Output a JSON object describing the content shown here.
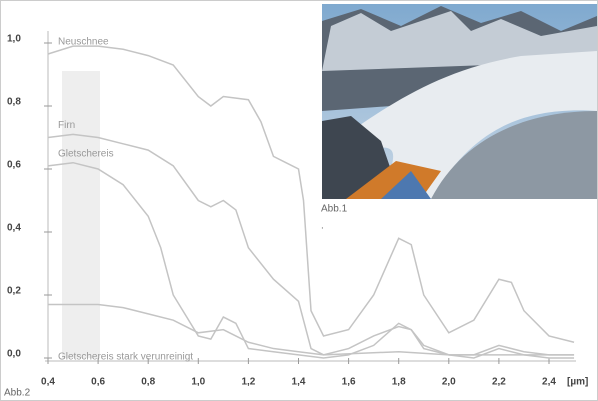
{
  "chart_data": {
    "type": "line",
    "x_label": "[µm]",
    "xlim": [
      0.4,
      2.5
    ],
    "ylim": [
      0,
      1.04
    ],
    "xticks": [
      {
        "value": 0.4,
        "label": "0,4"
      },
      {
        "value": 0.6,
        "label": "0,6"
      },
      {
        "value": 0.8,
        "label": "0,8"
      },
      {
        "value": 1.0,
        "label": "1,0"
      },
      {
        "value": 1.2,
        "label": "1,2"
      },
      {
        "value": 1.4,
        "label": "1,4"
      },
      {
        "value": 1.6,
        "label": "1,6"
      },
      {
        "value": 1.8,
        "label": "1,8"
      },
      {
        "value": 2.0,
        "label": "2,0"
      },
      {
        "value": 2.2,
        "label": "2,2"
      },
      {
        "value": 2.4,
        "label": "2,4"
      }
    ],
    "yticks": [
      {
        "value": 0,
        "label": "0,0"
      },
      {
        "value": 0.2,
        "label": "0,2"
      },
      {
        "value": 0.4,
        "label": "0,4"
      },
      {
        "value": 0.6,
        "label": "0,6"
      },
      {
        "value": 0.8,
        "label": "0,8"
      },
      {
        "value": 1.0,
        "label": "1,0"
      }
    ],
    "series": [
      {
        "name": "Neuschnee",
        "color": "#c4c4c4",
        "x": [
          0.4,
          0.5,
          0.6,
          0.7,
          0.8,
          0.9,
          1.0,
          1.05,
          1.1,
          1.2,
          1.25,
          1.3,
          1.35,
          1.4,
          1.42,
          1.45,
          1.5,
          1.6,
          1.7,
          1.8,
          1.85,
          1.9,
          2.0,
          2.1,
          2.2,
          2.25,
          2.3,
          2.4,
          2.5
        ],
        "values": [
          0.965,
          0.99,
          0.99,
          0.98,
          0.96,
          0.93,
          0.83,
          0.8,
          0.83,
          0.82,
          0.75,
          0.64,
          0.62,
          0.6,
          0.5,
          0.15,
          0.07,
          0.09,
          0.2,
          0.38,
          0.36,
          0.2,
          0.08,
          0.12,
          0.25,
          0.24,
          0.15,
          0.07,
          0.05
        ]
      },
      {
        "name": "Firn",
        "color": "#c4c4c4",
        "x": [
          0.4,
          0.5,
          0.6,
          0.7,
          0.8,
          0.9,
          1.0,
          1.05,
          1.1,
          1.15,
          1.2,
          1.3,
          1.4,
          1.45,
          1.5,
          1.6,
          1.7,
          1.8,
          1.85,
          1.9,
          2.0,
          2.1,
          2.2,
          2.3,
          2.4,
          2.5
        ],
        "values": [
          0.7,
          0.71,
          0.7,
          0.68,
          0.66,
          0.61,
          0.5,
          0.48,
          0.5,
          0.47,
          0.35,
          0.25,
          0.18,
          0.03,
          0.01,
          0.03,
          0.07,
          0.1,
          0.09,
          0.04,
          0.01,
          0.01,
          0.04,
          0.02,
          0.01,
          0.01
        ]
      },
      {
        "name": "Gletschereis",
        "color": "#c4c4c4",
        "x": [
          0.4,
          0.5,
          0.6,
          0.7,
          0.8,
          0.85,
          0.9,
          1.0,
          1.05,
          1.1,
          1.15,
          1.2,
          1.3,
          1.4,
          1.5,
          1.6,
          1.7,
          1.8,
          1.85,
          1.9,
          2.0,
          2.1,
          2.2,
          2.3,
          2.4,
          2.5
        ],
        "values": [
          0.61,
          0.62,
          0.6,
          0.55,
          0.45,
          0.35,
          0.2,
          0.07,
          0.06,
          0.13,
          0.11,
          0.03,
          0.02,
          0.01,
          0,
          0.01,
          0.04,
          0.11,
          0.09,
          0.03,
          0.01,
          0,
          0.03,
          0.01,
          0,
          0
        ]
      },
      {
        "name": "Gletschereis stark verunreinigt",
        "color": "#c4c4c4",
        "x": [
          0.4,
          0.5,
          0.6,
          0.7,
          0.8,
          0.9,
          1.0,
          1.1,
          1.2,
          1.3,
          1.4,
          1.5,
          1.8,
          2.0,
          2.2,
          2.5
        ],
        "values": [
          0.17,
          0.17,
          0.17,
          0.16,
          0.14,
          0.12,
          0.08,
          0.09,
          0.05,
          0.03,
          0.02,
          0.01,
          0.02,
          0.01,
          0.01,
          0.01
        ]
      }
    ]
  },
  "captions": {
    "photo": "Abb.1",
    "dot": ".",
    "chart": "Abb.2"
  }
}
